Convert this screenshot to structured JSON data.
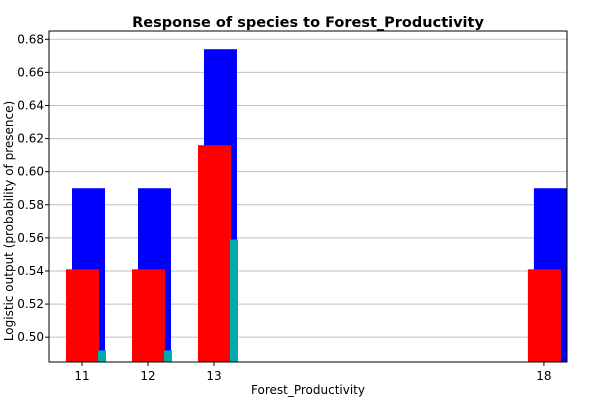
{
  "chart_data": {
    "type": "bar",
    "title": "Response of species to Forest_Productivity",
    "xlabel": "Forest_Productivity",
    "ylabel": "Logistic output (probability of presence)",
    "x_ticks": [
      "11",
      "12",
      "13",
      "18"
    ],
    "x_values": [
      11,
      12,
      13,
      18
    ],
    "xlim": [
      10.5,
      18.35
    ],
    "ylim": [
      0.485,
      0.685
    ],
    "y_ticks": [
      0.5,
      0.52,
      0.54,
      0.56,
      0.58,
      0.6,
      0.62,
      0.64,
      0.66,
      0.68
    ],
    "grid": true,
    "series": [
      {
        "color": "#0000ff",
        "values": [
          0.59,
          0.59,
          0.674,
          0.59
        ]
      },
      {
        "color": "#ff0000",
        "values": [
          0.541,
          0.541,
          0.616,
          0.541
        ]
      },
      {
        "color": "#00aaaa",
        "values": [
          0.492,
          0.492,
          0.559,
          null
        ]
      }
    ]
  }
}
